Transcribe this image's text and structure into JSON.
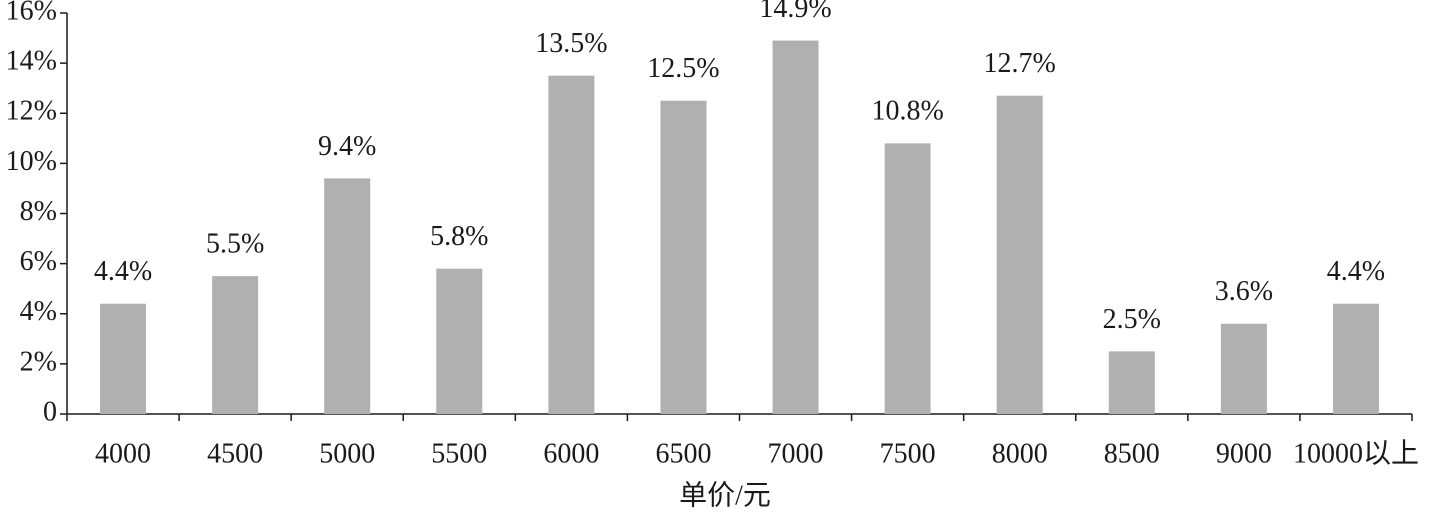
{
  "chart_data": {
    "type": "bar",
    "x_label": "单价/元",
    "categories": [
      "4000",
      "4500",
      "5000",
      "5500",
      "6000",
      "6500",
      "7000",
      "7500",
      "8000",
      "8500",
      "9000",
      "10000以上"
    ],
    "values": [
      4.4,
      5.5,
      9.4,
      5.8,
      13.5,
      12.5,
      14.9,
      10.8,
      12.7,
      2.5,
      3.6,
      4.4
    ],
    "value_labels": [
      "4.4%",
      "5.5%",
      "9.4%",
      "5.8%",
      "13.5%",
      "12.5%",
      "14.9%",
      "10.8%",
      "12.7%",
      "2.5%",
      "3.6%",
      "4.4%"
    ],
    "color": "#b0b0b0",
    "ylim": [
      0,
      16
    ],
    "yticks": [
      0,
      {
        "value": 2,
        "label": "2%"
      },
      {
        "value": 4,
        "label": "4%"
      },
      {
        "value": 6,
        "label": "6%"
      },
      {
        "value": 8,
        "label": "8%"
      },
      {
        "value": 10,
        "label": "10%"
      },
      {
        "value": 12,
        "label": "12%"
      },
      {
        "value": 14,
        "label": "14%"
      },
      {
        "value": 16,
        "label": "16%"
      }
    ],
    "grid": false
  }
}
